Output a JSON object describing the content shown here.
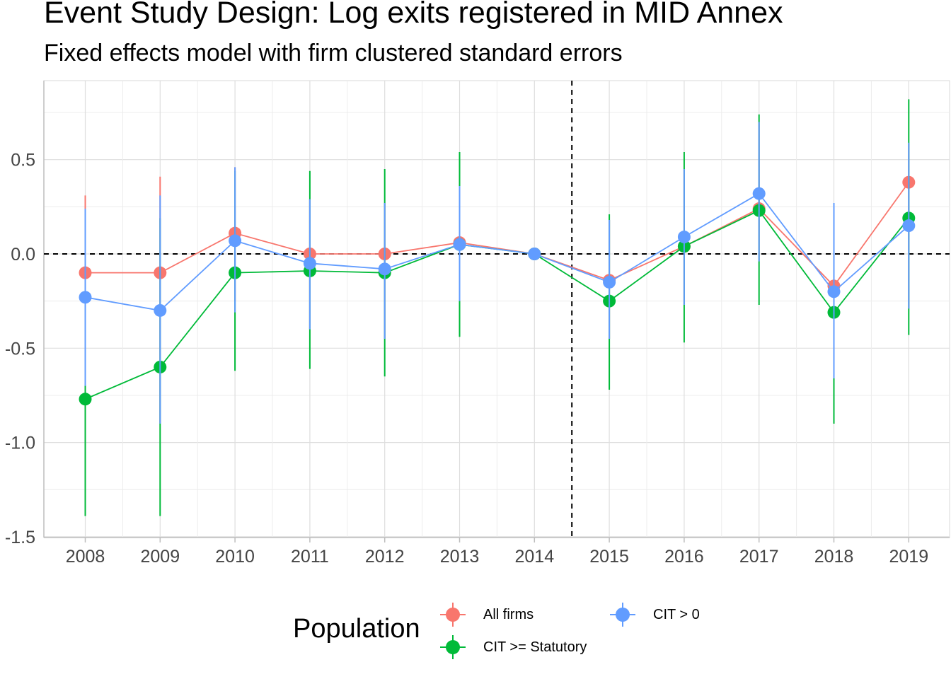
{
  "title": "Event Study Design: Log exits registered in MID Annex",
  "subtitle": "Fixed effects model with firm clustered standard errors",
  "legend": {
    "title": "Population",
    "placement": "bottom"
  },
  "chart_data": {
    "type": "line",
    "title": "Event Study Design: Log exits registered in MID Annex",
    "subtitle": "Fixed effects model with firm clustered standard errors",
    "xlabel": "",
    "ylabel": "",
    "x": [
      2008,
      2009,
      2010,
      2011,
      2012,
      2013,
      2014,
      2015,
      2016,
      2017,
      2018,
      2019
    ],
    "x_tick_labels": [
      "2008",
      "2009",
      "2010",
      "2011",
      "2012",
      "2013",
      "2014",
      "2015",
      "2016",
      "2017",
      "2018",
      "2019"
    ],
    "y_tick_labels": [
      "0.5",
      "0.0",
      "-0.5",
      "-1.0",
      "-1.5"
    ],
    "y_ticks": [
      0.5,
      0.0,
      -0.5,
      -1.0,
      -1.5
    ],
    "ylim": [
      -1.5,
      0.85
    ],
    "grid": true,
    "reference_lines": {
      "horizontal": 0,
      "vertical": 2014.5
    },
    "series": [
      {
        "name": "All firms",
        "color": "#F8766D",
        "values": [
          -0.1,
          -0.1,
          0.11,
          0.0,
          0.0,
          0.06,
          0.0,
          -0.14,
          0.04,
          0.24,
          -0.17,
          0.38
        ],
        "lower": [
          -0.7,
          -0.9,
          -0.25,
          -0.4,
          -0.45,
          -0.25,
          0.0,
          -0.45,
          -0.27,
          -0.04,
          -0.66,
          -0.29
        ],
        "upper": [
          0.31,
          0.41,
          0.46,
          0.29,
          0.27,
          0.36,
          0.0,
          0.18,
          0.45,
          0.7,
          0.27,
          0.59
        ]
      },
      {
        "name": "CIT >= Statutory",
        "color": "#00BA38",
        "values": [
          -0.77,
          -0.6,
          -0.1,
          -0.09,
          -0.1,
          0.05,
          0.0,
          -0.25,
          0.04,
          0.23,
          -0.31,
          0.19
        ],
        "lower": [
          -1.39,
          -1.39,
          -0.62,
          -0.61,
          -0.65,
          -0.44,
          0.0,
          -0.72,
          -0.47,
          -0.27,
          -0.9,
          -0.43
        ],
        "upper": [
          -0.15,
          0.19,
          0.44,
          0.44,
          0.45,
          0.54,
          0.0,
          0.21,
          0.54,
          0.74,
          0.27,
          0.82
        ]
      },
      {
        "name": "CIT > 0",
        "color": "#619CFF",
        "values": [
          -0.23,
          -0.3,
          0.07,
          -0.05,
          -0.08,
          0.05,
          0.0,
          -0.15,
          0.09,
          0.32,
          -0.2,
          0.15
        ],
        "lower": [
          -0.7,
          -0.9,
          -0.31,
          -0.4,
          -0.45,
          -0.25,
          0.0,
          -0.45,
          -0.27,
          -0.04,
          -0.66,
          -0.29
        ],
        "upper": [
          0.24,
          0.31,
          0.46,
          0.29,
          0.27,
          0.36,
          0.0,
          0.18,
          0.45,
          0.7,
          0.27,
          0.59
        ]
      }
    ]
  }
}
